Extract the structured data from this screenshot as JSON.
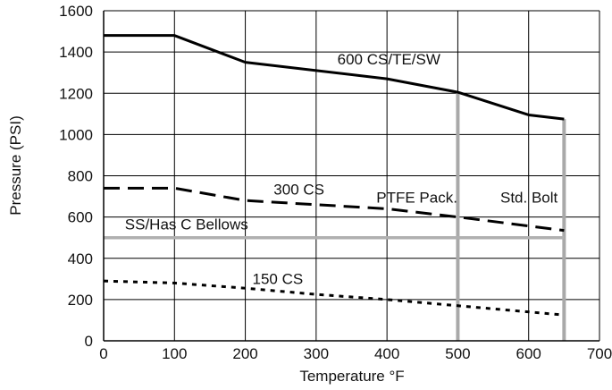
{
  "chart_data": {
    "type": "line",
    "title": "",
    "xlabel": "Temperature °F",
    "ylabel": "Pressure (PSI)",
    "xlim": [
      0,
      700
    ],
    "ylim": [
      0,
      1600
    ],
    "xticks": [
      "0",
      "100",
      "200",
      "300",
      "400",
      "500",
      "600",
      "700"
    ],
    "yticks": [
      "0",
      "200",
      "400",
      "600",
      "800",
      "1000",
      "1200",
      "1400",
      "1600"
    ],
    "grid": true,
    "series": [
      {
        "name": "600 CS/TE/SW",
        "style": "solid",
        "color": "#000000",
        "x": [
          0,
          100,
          200,
          400,
          500,
          600,
          650
        ],
        "y": [
          1480,
          1480,
          1350,
          1270,
          1205,
          1095,
          1075
        ]
      },
      {
        "name": "300 CS",
        "style": "dashed",
        "color": "#000000",
        "x": [
          0,
          100,
          200,
          300,
          400,
          500,
          650
        ],
        "y": [
          740,
          740,
          680,
          660,
          640,
          600,
          535
        ]
      },
      {
        "name": "150 CS",
        "style": "dotted",
        "color": "#000000",
        "x": [
          0,
          100,
          200,
          300,
          400,
          500,
          650
        ],
        "y": [
          290,
          280,
          255,
          225,
          200,
          170,
          125
        ]
      },
      {
        "name": "SS/Has C Bellows",
        "style": "solid",
        "color": "#b0b0b0",
        "x": [
          0,
          650
        ],
        "y": [
          500,
          500
        ]
      }
    ],
    "reference_lines": [
      {
        "label": "PTFE Pack.",
        "x": 500,
        "y_max": 1205,
        "color": "#a9a9a9"
      },
      {
        "label": "Std. Bolt",
        "x": 650,
        "y_max": 1075,
        "color": "#a9a9a9"
      }
    ],
    "annotations": [
      {
        "text": "600 CS/TE/SW",
        "x": 330,
        "y": 1340
      },
      {
        "text": "300 CS",
        "x": 240,
        "y": 710
      },
      {
        "text": "PTFE Pack.",
        "x": 385,
        "y": 670
      },
      {
        "text": "Std. Bolt",
        "x": 560,
        "y": 670
      },
      {
        "text": "SS/Has C Bellows",
        "x": 30,
        "y": 540
      },
      {
        "text": "150 CS",
        "x": 210,
        "y": 275
      }
    ]
  }
}
